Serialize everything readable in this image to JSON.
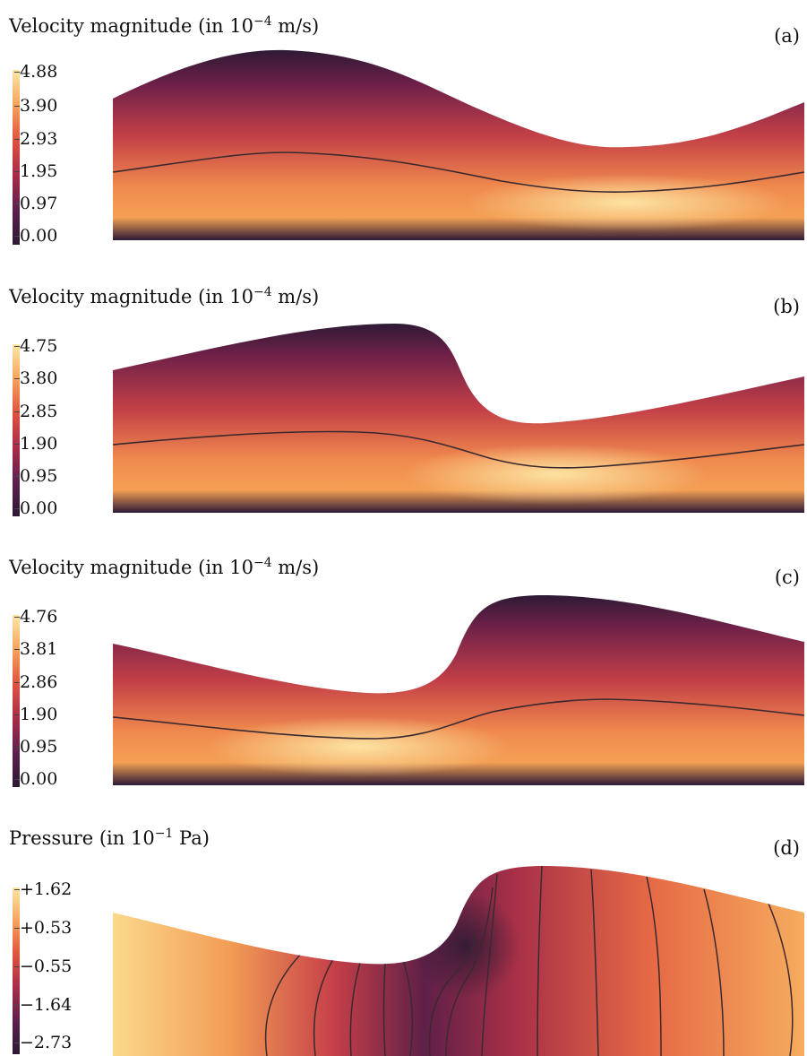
{
  "chart_data": [
    {
      "type": "heatmap",
      "panel": "(a)",
      "title": "Velocity magnitude",
      "unit": "(in 10⁻⁴ m/s)",
      "unit_prefix": "(in 10",
      "unit_exp": "−4",
      "unit_suffix": " m/s)",
      "colorbar_ticks": [
        "4.88",
        "3.90",
        "2.93",
        "1.95",
        "0.97",
        "0.00"
      ],
      "colorbar_range": [
        0.0,
        4.88
      ]
    },
    {
      "type": "heatmap",
      "panel": "(b)",
      "title": "Velocity magnitude",
      "unit": "(in 10⁻⁴ m/s)",
      "unit_prefix": "(in 10",
      "unit_exp": "−4",
      "unit_suffix": " m/s)",
      "colorbar_ticks": [
        "4.75",
        "3.80",
        "2.85",
        "1.90",
        "0.95",
        "0.00"
      ],
      "colorbar_range": [
        0.0,
        4.75
      ]
    },
    {
      "type": "heatmap",
      "panel": "(c)",
      "title": "Velocity magnitude",
      "unit": "(in 10⁻⁴ m/s)",
      "unit_prefix": "(in 10",
      "unit_exp": "−4",
      "unit_suffix": " m/s)",
      "colorbar_ticks": [
        "4.76",
        "3.81",
        "2.86",
        "1.90",
        "0.95",
        "0.00"
      ],
      "colorbar_range": [
        0.0,
        4.76
      ]
    },
    {
      "type": "heatmap",
      "panel": "(d)",
      "title": "Pressure",
      "unit": "(in 10⁻¹ Pa)",
      "unit_prefix": "(in 10",
      "unit_exp": "−1",
      "unit_suffix": " Pa)",
      "colorbar_ticks": [
        "+1.62",
        "+0.53",
        "−0.55",
        "−1.64",
        "−2.73"
      ],
      "colorbar_range": [
        -2.73,
        1.62
      ]
    }
  ]
}
